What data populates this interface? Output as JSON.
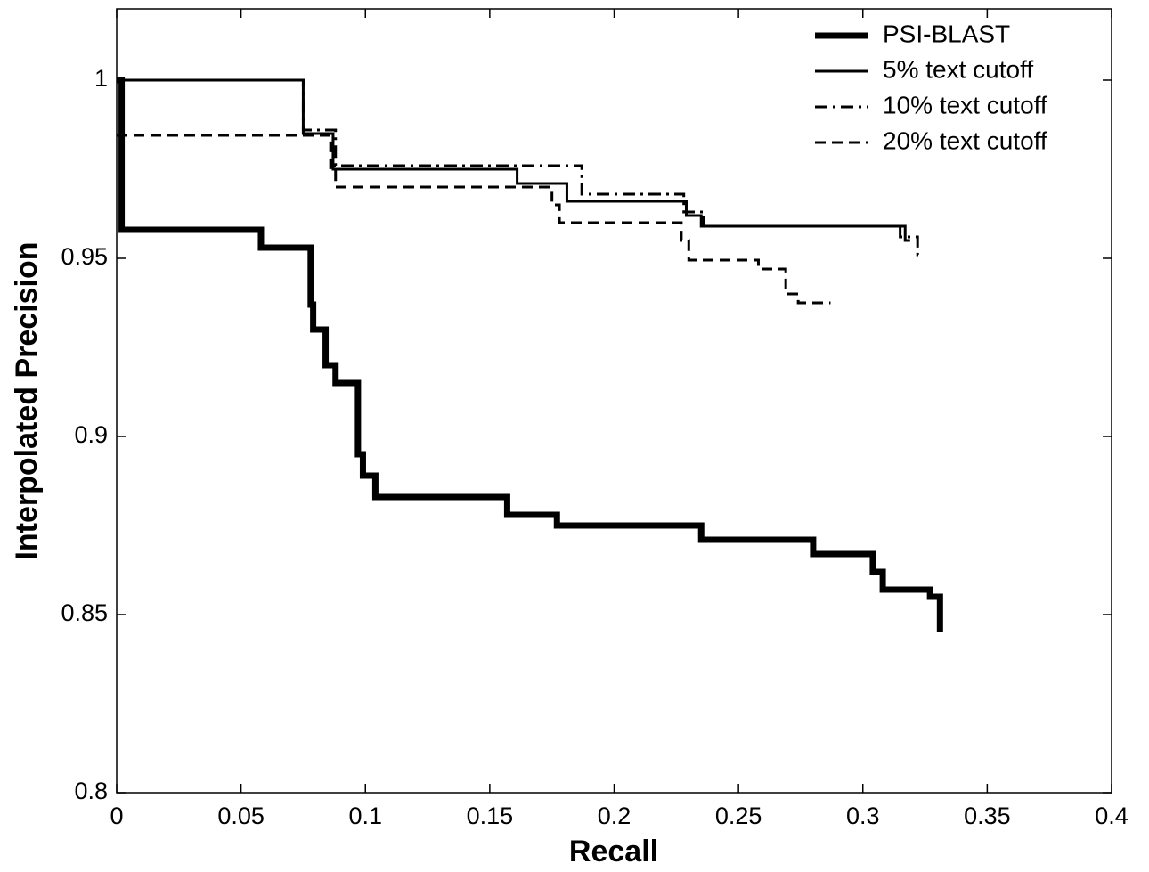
{
  "chart_data": {
    "type": "line",
    "x_label": "Recall",
    "y_label": "Interpolated Precision",
    "xlim": [
      0,
      0.4
    ],
    "xticks": [
      0,
      0.05,
      0.1,
      0.15,
      0.2,
      0.25,
      0.3,
      0.35,
      0.4
    ],
    "ylim": [
      0.8,
      1.02
    ],
    "yticks": [
      0.8,
      0.85,
      0.9,
      0.95,
      1
    ],
    "legend": "upper right",
    "grid": false,
    "series": [
      {
        "name": "PSI-BLAST",
        "color": "#000000",
        "linestyle": "solid",
        "linewidth": 7,
        "x": [
          0,
          0.002,
          0.002,
          0.058,
          0.058,
          0.078,
          0.078,
          0.079,
          0.079,
          0.084,
          0.084,
          0.088,
          0.088,
          0.097,
          0.097,
          0.099,
          0.099,
          0.104,
          0.104,
          0.157,
          0.157,
          0.177,
          0.177,
          0.235,
          0.235,
          0.28,
          0.28,
          0.304,
          0.304,
          0.308,
          0.308,
          0.327,
          0.327,
          0.331,
          0.331
        ],
        "values": [
          1.0,
          1.0,
          0.958,
          0.958,
          0.953,
          0.953,
          0.937,
          0.937,
          0.93,
          0.93,
          0.92,
          0.92,
          0.915,
          0.915,
          0.895,
          0.895,
          0.889,
          0.889,
          0.883,
          0.883,
          0.878,
          0.878,
          0.875,
          0.875,
          0.871,
          0.871,
          0.867,
          0.867,
          0.862,
          0.862,
          0.857,
          0.857,
          0.855,
          0.855,
          0.845
        ]
      },
      {
        "name": "5% text cutoff",
        "color": "#000000",
        "linestyle": "solid",
        "linewidth": 3,
        "x": [
          0,
          0.075,
          0.075,
          0.087,
          0.087,
          0.161,
          0.161,
          0.181,
          0.181,
          0.229,
          0.229,
          0.235,
          0.235,
          0.317,
          0.317,
          0.319
        ],
        "values": [
          1,
          1,
          0.985,
          0.985,
          0.975,
          0.975,
          0.971,
          0.971,
          0.966,
          0.966,
          0.962,
          0.962,
          0.959,
          0.959,
          0.955,
          0.955
        ]
      },
      {
        "name": "10% text cutoff",
        "color": "#000000",
        "linestyle": "dashdot",
        "linewidth": 3,
        "x": [
          0,
          0.075,
          0.075,
          0.088,
          0.088,
          0.187,
          0.187,
          0.228,
          0.228,
          0.236,
          0.236,
          0.315,
          0.315,
          0.322,
          0.322,
          0.324
        ],
        "values": [
          1,
          1,
          0.986,
          0.986,
          0.976,
          0.976,
          0.968,
          0.968,
          0.963,
          0.963,
          0.959,
          0.959,
          0.956,
          0.956,
          0.951,
          0.951
        ]
      },
      {
        "name": "20% text cutoff",
        "color": "#000000",
        "linestyle": "dashed",
        "linewidth": 3,
        "x": [
          0,
          0.086,
          0.086,
          0.088,
          0.088,
          0.175,
          0.175,
          0.178,
          0.178,
          0.227,
          0.227,
          0.23,
          0.23,
          0.258,
          0.258,
          0.269,
          0.269,
          0.274,
          0.274,
          0.287
        ],
        "values": [
          0.9845,
          0.9845,
          0.975,
          0.975,
          0.97,
          0.97,
          0.965,
          0.965,
          0.96,
          0.96,
          0.955,
          0.955,
          0.9495,
          0.9495,
          0.947,
          0.947,
          0.94,
          0.94,
          0.9375,
          0.9375
        ]
      }
    ]
  }
}
